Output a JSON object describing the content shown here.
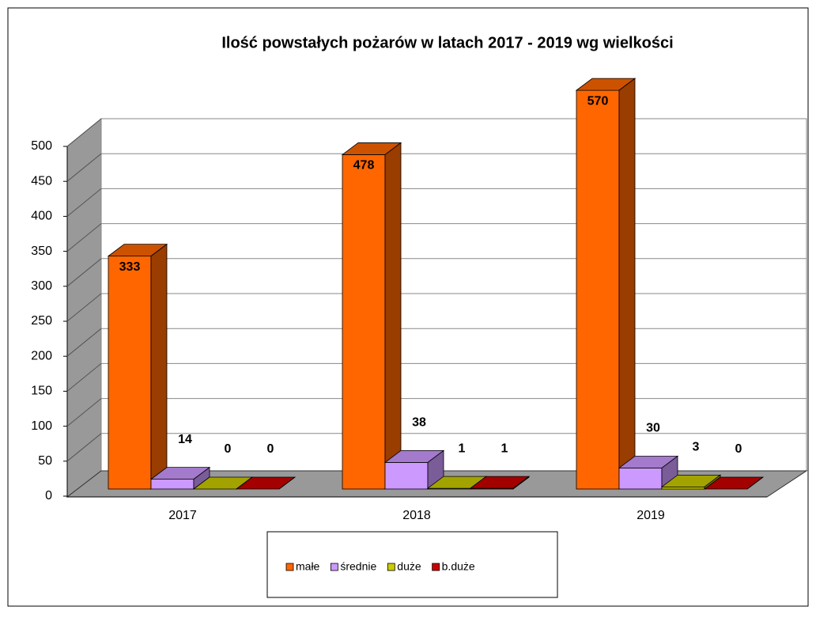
{
  "chart_data": {
    "type": "bar3d",
    "title": "Ilość powstałych pożarów w latach 2017 - 2019 wg wielkości",
    "categories": [
      "2017",
      "2018",
      "2019"
    ],
    "series": [
      {
        "name": "małe",
        "color": "#ff6600",
        "values": [
          333,
          478,
          570
        ]
      },
      {
        "name": "średnie",
        "color": "#cc99ff",
        "values": [
          14,
          38,
          30
        ]
      },
      {
        "name": "duże",
        "color": "#cccc00",
        "values": [
          0,
          1,
          3
        ]
      },
      {
        "name": "b.duże",
        "color": "#cc0000",
        "values": [
          0,
          1,
          0
        ]
      }
    ],
    "ylim": [
      0,
      500
    ],
    "yticks": [
      0,
      50,
      100,
      150,
      200,
      250,
      300,
      350,
      400,
      450,
      500
    ],
    "grid": true,
    "legend": "bottom"
  }
}
